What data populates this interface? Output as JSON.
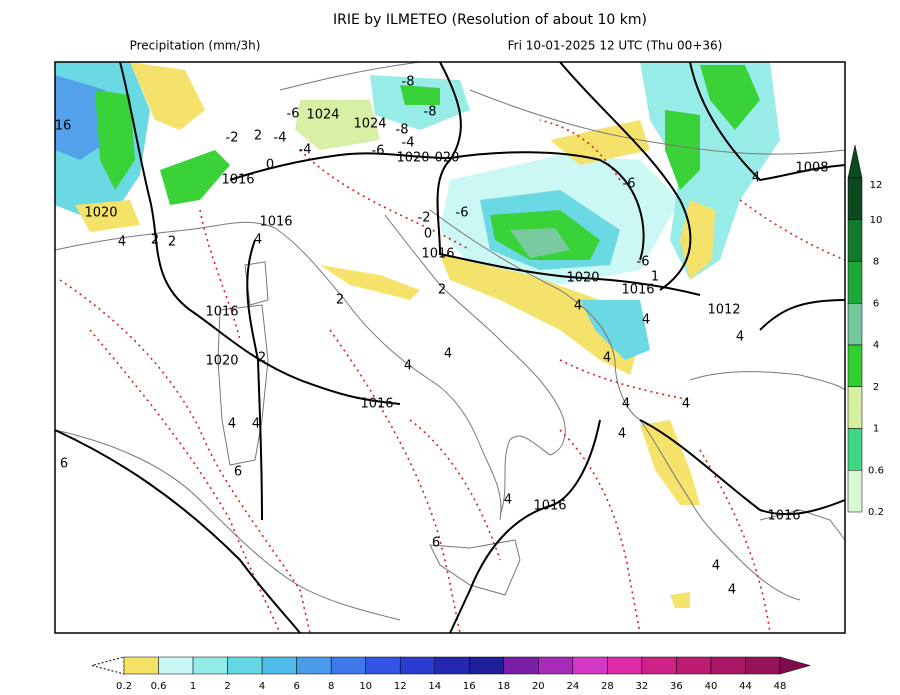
{
  "header": {
    "title": "IRIE by ILMETEO (Resolution of about 10 km)",
    "left": "Precipitation (mm/3h)",
    "right": "Fri 10-01-2025 12 UTC (Thu 00+36)"
  },
  "bottom_scale": {
    "labels": [
      "0.2",
      "0.6",
      "1",
      "2",
      "4",
      "6",
      "8",
      "10",
      "12",
      "14",
      "16",
      "18",
      "20",
      "24",
      "28",
      "32",
      "36",
      "40",
      "44",
      "48"
    ],
    "colors": [
      "#f5e163",
      "#c9f7f4",
      "#93ebe7",
      "#63d7e3",
      "#4fbde9",
      "#4a9cea",
      "#3f79ea",
      "#3355e6",
      "#2a3bd0",
      "#2428b0",
      "#1e1e98",
      "#7a20a8",
      "#a72ab8",
      "#d23ac6",
      "#e02ca8",
      "#cf2288",
      "#bd1c72",
      "#aa1865",
      "#961259",
      "#800b4c"
    ]
  },
  "side_scale": {
    "labels": [
      "12",
      "10",
      "8",
      "6",
      "4",
      "2",
      "1",
      "0.6",
      "0.2"
    ],
    "colors": [
      "#0a4a1e",
      "#127a2c",
      "#1fa83a",
      "#72c89a",
      "#2fd02f",
      "#d6f0a2",
      "#3ed885",
      "#d8f8d4"
    ]
  },
  "isobar_labels": [
    "1024",
    "1024",
    "1020",
    "020",
    "1016",
    "1016",
    "1020",
    "1016",
    "1020",
    "1016",
    "1012",
    "1008",
    "1016",
    "1020",
    "1016",
    "1016",
    "1016"
  ],
  "temperature_labels": [
    "-8",
    "-8",
    "-6",
    "-8",
    "-4",
    "-6",
    "-6",
    "-6",
    "-6",
    "-2",
    "0",
    "-4",
    "-4",
    "-2",
    "2",
    "0",
    "16",
    "4",
    "2",
    "2",
    "4",
    "2",
    "2",
    "4",
    "4",
    "4",
    "4",
    "4",
    "4",
    "4",
    "4",
    "4",
    "4",
    "1",
    "4",
    "4",
    "6",
    "2",
    "6",
    "6",
    "4",
    "4",
    "4"
  ]
}
